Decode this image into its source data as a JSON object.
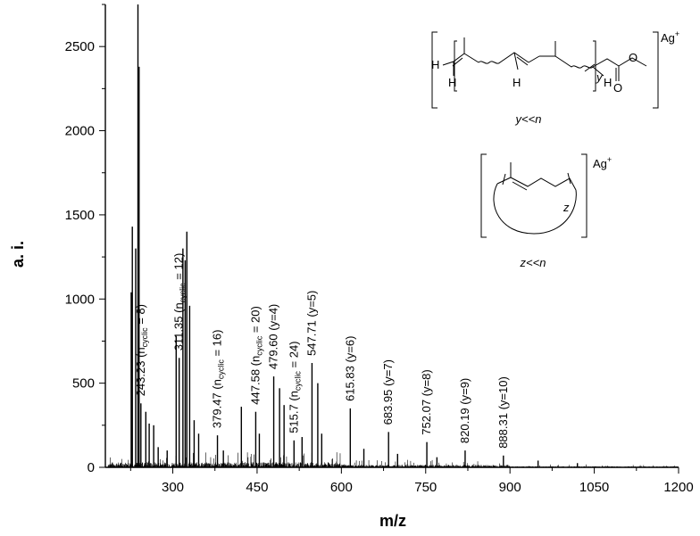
{
  "chart_data": {
    "type": "line",
    "title": "",
    "xlabel": "m/z",
    "ylabel": "a. i.",
    "xlim": [
      180,
      1200
    ],
    "ylim": [
      0,
      2750
    ],
    "xticks": [
      300,
      450,
      600,
      750,
      900,
      1050,
      1200
    ],
    "yticks": [
      0,
      500,
      1000,
      1500,
      2000,
      2500
    ],
    "grid": false,
    "major_peaks": [
      {
        "mz": 226,
        "intensity": 1040
      },
      {
        "mz": 228,
        "intensity": 1430
      },
      {
        "mz": 234,
        "intensity": 1300
      },
      {
        "mz": 238,
        "intensity": 2750
      },
      {
        "mz": 240,
        "intensity": 2380
      },
      {
        "mz": 243.23,
        "intensity": 380
      },
      {
        "mz": 252,
        "intensity": 330
      },
      {
        "mz": 258,
        "intensity": 260
      },
      {
        "mz": 266,
        "intensity": 250
      },
      {
        "mz": 274,
        "intensity": 120
      },
      {
        "mz": 290,
        "intensity": 100
      },
      {
        "mz": 306,
        "intensity": 780
      },
      {
        "mz": 311.35,
        "intensity": 650
      },
      {
        "mz": 318,
        "intensity": 1300
      },
      {
        "mz": 322,
        "intensity": 1230
      },
      {
        "mz": 325,
        "intensity": 1400
      },
      {
        "mz": 330,
        "intensity": 960
      },
      {
        "mz": 338,
        "intensity": 280
      },
      {
        "mz": 346,
        "intensity": 200
      },
      {
        "mz": 379.47,
        "intensity": 190
      },
      {
        "mz": 390,
        "intensity": 100
      },
      {
        "mz": 422,
        "intensity": 360
      },
      {
        "mz": 447.58,
        "intensity": 330
      },
      {
        "mz": 454,
        "intensity": 200
      },
      {
        "mz": 479.6,
        "intensity": 540
      },
      {
        "mz": 490,
        "intensity": 470
      },
      {
        "mz": 498,
        "intensity": 370
      },
      {
        "mz": 515.7,
        "intensity": 160
      },
      {
        "mz": 530,
        "intensity": 180
      },
      {
        "mz": 547.71,
        "intensity": 620
      },
      {
        "mz": 558,
        "intensity": 500
      },
      {
        "mz": 565,
        "intensity": 200
      },
      {
        "mz": 615.83,
        "intensity": 350
      },
      {
        "mz": 640,
        "intensity": 110
      },
      {
        "mz": 683.95,
        "intensity": 210
      },
      {
        "mz": 700,
        "intensity": 80
      },
      {
        "mz": 752.07,
        "intensity": 150
      },
      {
        "mz": 770,
        "intensity": 60
      },
      {
        "mz": 820.19,
        "intensity": 100
      },
      {
        "mz": 888.31,
        "intensity": 70
      },
      {
        "mz": 950,
        "intensity": 40
      },
      {
        "mz": 1020,
        "intensity": 25
      }
    ],
    "annotations": [
      {
        "mz": 243.23,
        "parts": [
          "243.23 (n",
          "cyclic",
          " = 8)"
        ]
      },
      {
        "mz": 311.35,
        "parts": [
          "311.35 (n",
          "cyclic",
          " = 12)"
        ]
      },
      {
        "mz": 379.47,
        "parts": [
          "379.47 (n",
          "cyclic",
          " = 16)"
        ]
      },
      {
        "mz": 447.58,
        "parts": [
          "447.58 (n",
          "cyclic",
          " = 20)"
        ]
      },
      {
        "mz": 479.6,
        "parts": [
          "479.60 (y=4)"
        ]
      },
      {
        "mz": 515.7,
        "parts": [
          "515.7 (n",
          "cyclic",
          " = 24)"
        ]
      },
      {
        "mz": 547.71,
        "parts": [
          "547.71 (y=5)"
        ]
      },
      {
        "mz": 615.83,
        "parts": [
          "615.83 (y=6)"
        ]
      },
      {
        "mz": 683.95,
        "parts": [
          "683.95 (y=7)"
        ]
      },
      {
        "mz": 752.07,
        "parts": [
          "752.07 (y=8)"
        ]
      },
      {
        "mz": 820.19,
        "parts": [
          "820.19 (y=9)"
        ]
      },
      {
        "mz": 888.31,
        "parts": [
          "888.31 (y=10)"
        ]
      }
    ]
  },
  "structures": {
    "linear": {
      "ion": "Ag",
      "charge": "+",
      "h_left": "H",
      "h_under": "H",
      "h_mid": "H",
      "h_right": "H",
      "o_top": "O",
      "o_bottom": "O",
      "subscript": "y",
      "caption": "y<<n"
    },
    "cyclic": {
      "ion": "Ag",
      "charge": "+",
      "subscript": "z",
      "caption": "z<<n"
    }
  }
}
